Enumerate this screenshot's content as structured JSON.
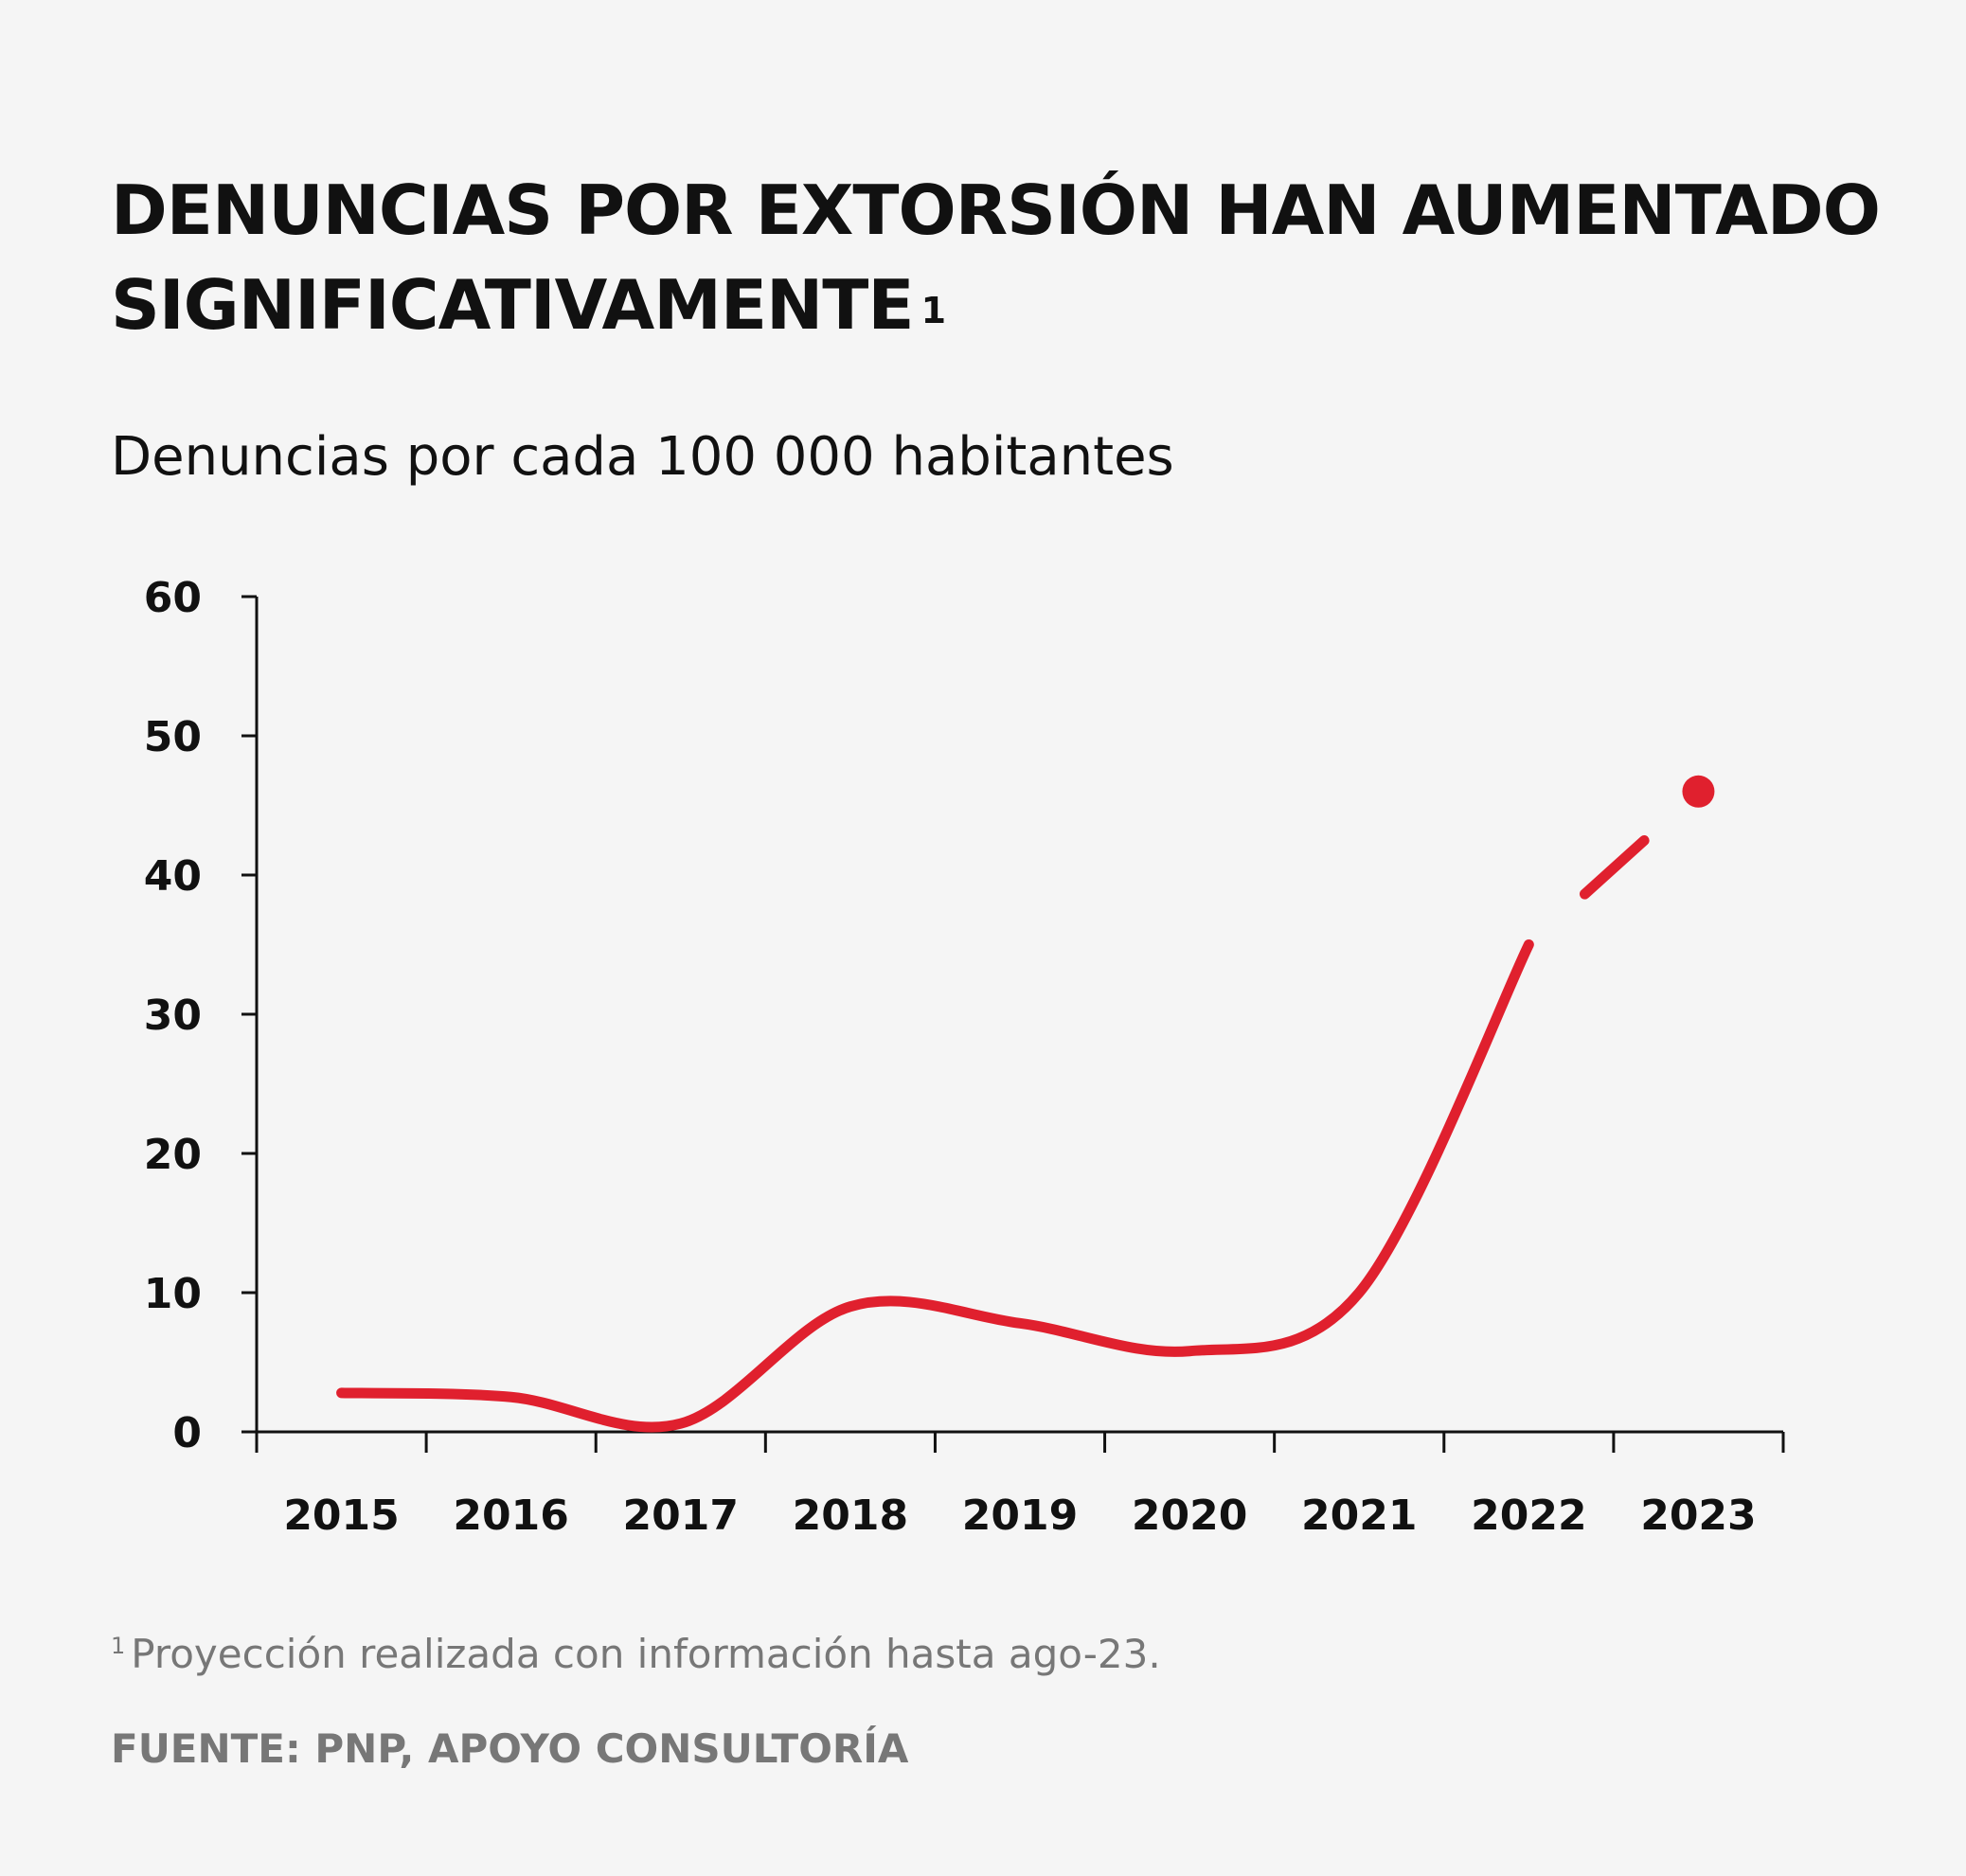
{
  "header": {
    "title": "DENUNCIAS POR EXTORSIÓN HAN AUMENTADO SIGNIFICATIVAMENTE",
    "title_footnote_mark": "1",
    "subtitle": "Denuncias por cada 100 000 habitantes"
  },
  "footer": {
    "note_mark": "1",
    "note": "Proyección realizada con información hasta ago-23.",
    "source": "FUENTE: PNP, APOYO CONSULTORÍA"
  },
  "chart_data": {
    "type": "line",
    "categories": [
      "2015",
      "2016",
      "2017",
      "2018",
      "2019",
      "2020",
      "2021",
      "2022",
      "2023"
    ],
    "series": [
      {
        "values": [
          2.8,
          2.5,
          0.6,
          9.0,
          7.8,
          5.8,
          10.0,
          35.0,
          46.0
        ],
        "color": "#e0202e",
        "projected_from_index": 7
      }
    ],
    "ylim": [
      0,
      60
    ],
    "yticks": [
      0,
      10,
      20,
      30,
      40,
      50,
      60
    ],
    "grid": false,
    "legend": "none",
    "marker_last_point": true
  }
}
